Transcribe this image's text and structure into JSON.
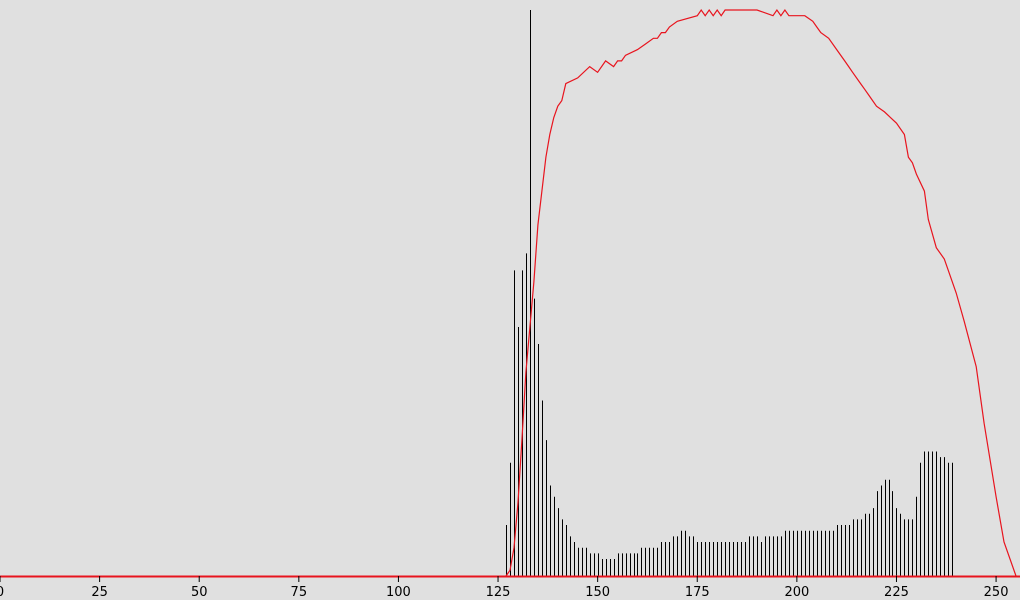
{
  "chart_data": {
    "type": "bar",
    "title": "",
    "xlabel": "",
    "ylabel": "",
    "xlim": [
      0,
      255
    ],
    "x_ticks": [
      0,
      25,
      50,
      75,
      100,
      125,
      150,
      175,
      200,
      225,
      250
    ],
    "x_tick_labels": [
      "0",
      "25",
      "50",
      "75",
      "100",
      "125",
      "150",
      "175",
      "200",
      "225",
      "250"
    ],
    "grid": false,
    "legend": "none",
    "colors": {
      "background": "#e0e0e0",
      "bars": "#000000",
      "curve": "#e8141e",
      "baseline": "#e8141e"
    },
    "series": [
      {
        "kind": "histogram-bars",
        "bins_start": 127,
        "values_percent_of_max": [
          9,
          20,
          54,
          44,
          54,
          57,
          100,
          49,
          41,
          31,
          24,
          16,
          14,
          12,
          10,
          9,
          7,
          6,
          5,
          5,
          5,
          4,
          4,
          4,
          3,
          3,
          3,
          3,
          4,
          4,
          4,
          4,
          4,
          4,
          5,
          5,
          5,
          5,
          5,
          6,
          6,
          6,
          7,
          7,
          8,
          8,
          7,
          7,
          6,
          6,
          6,
          6,
          6,
          6,
          6,
          6,
          6,
          6,
          6,
          6,
          6,
          7,
          7,
          7,
          6,
          7,
          7,
          7,
          7,
          7,
          8,
          8,
          8,
          8,
          8,
          8,
          8,
          8,
          8,
          8,
          8,
          8,
          8,
          9,
          9,
          9,
          9,
          10,
          10,
          10,
          11,
          11,
          12,
          15,
          16,
          17,
          17,
          15,
          12,
          11,
          10,
          10,
          10,
          14,
          20,
          22,
          22,
          22,
          22,
          21,
          21,
          20,
          20
        ]
      },
      {
        "kind": "line",
        "x": [
          127,
          128,
          129,
          130,
          131,
          132,
          133,
          134,
          135,
          136,
          137,
          138,
          139,
          140,
          141,
          142,
          145,
          148,
          150,
          152,
          154,
          155,
          156,
          157,
          160,
          162,
          164,
          165,
          166,
          167,
          168,
          170,
          175,
          176,
          177,
          178,
          179,
          180,
          181,
          182,
          183,
          185,
          190,
          194,
          195,
          196,
          197,
          198,
          199,
          200,
          202,
          204,
          205,
          206,
          208,
          210,
          212,
          213,
          214,
          216,
          217,
          218,
          220,
          222,
          225,
          227,
          228,
          229,
          230,
          232,
          233,
          235,
          237,
          238,
          240,
          242,
          245,
          247,
          250,
          252,
          255
        ],
        "y_percent_of_max": [
          0,
          1,
          5,
          13,
          24,
          36,
          44,
          52,
          62,
          68,
          74,
          78,
          81,
          83,
          84,
          87,
          88,
          90,
          89,
          91,
          90,
          91,
          91,
          92,
          93,
          94,
          95,
          95,
          96,
          96,
          97,
          98,
          99,
          100,
          99,
          100,
          99,
          100,
          99,
          100,
          100,
          100,
          100,
          99,
          100,
          99,
          100,
          99,
          99,
          99,
          99,
          98,
          97,
          96,
          95,
          93,
          91,
          90,
          89,
          87,
          86,
          85,
          83,
          82,
          80,
          78,
          74,
          73,
          71,
          68,
          63,
          58,
          56,
          54,
          50,
          45,
          37,
          27,
          14,
          6,
          0
        ]
      }
    ]
  }
}
